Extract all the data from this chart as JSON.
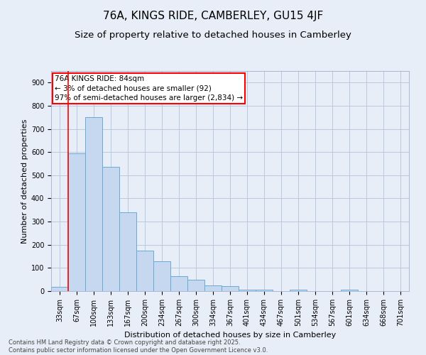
{
  "title": "76A, KINGS RIDE, CAMBERLEY, GU15 4JF",
  "subtitle": "Size of property relative to detached houses in Camberley",
  "xlabel": "Distribution of detached houses by size in Camberley",
  "ylabel": "Number of detached properties",
  "categories": [
    "33sqm",
    "67sqm",
    "100sqm",
    "133sqm",
    "167sqm",
    "200sqm",
    "234sqm",
    "267sqm",
    "300sqm",
    "334sqm",
    "367sqm",
    "401sqm",
    "434sqm",
    "467sqm",
    "501sqm",
    "534sqm",
    "567sqm",
    "601sqm",
    "634sqm",
    "668sqm",
    "701sqm"
  ],
  "values": [
    18,
    595,
    750,
    535,
    340,
    175,
    130,
    65,
    50,
    25,
    22,
    7,
    7,
    0,
    7,
    0,
    0,
    7,
    0,
    0,
    0
  ],
  "bar_color": "#c5d8f0",
  "bar_edge_color": "#6aaad4",
  "red_line_index": 1,
  "annotation_text": "76A KINGS RIDE: 84sqm\n← 3% of detached houses are smaller (92)\n97% of semi-detached houses are larger (2,834) →",
  "annotation_box_color": "white",
  "annotation_box_edge_color": "red",
  "red_line_color": "red",
  "footer_line1": "Contains HM Land Registry data © Crown copyright and database right 2025.",
  "footer_line2": "Contains public sector information licensed under the Open Government Licence v3.0.",
  "background_color": "#e8eef8",
  "plot_background_color": "#e8eef8",
  "grid_color": "#b8c8e0",
  "ylim": [
    0,
    950
  ],
  "yticks": [
    0,
    100,
    200,
    300,
    400,
    500,
    600,
    700,
    800,
    900
  ],
  "title_fontsize": 11,
  "subtitle_fontsize": 9.5,
  "axis_label_fontsize": 8,
  "tick_fontsize": 7,
  "annotation_fontsize": 7.5,
  "footer_fontsize": 6
}
